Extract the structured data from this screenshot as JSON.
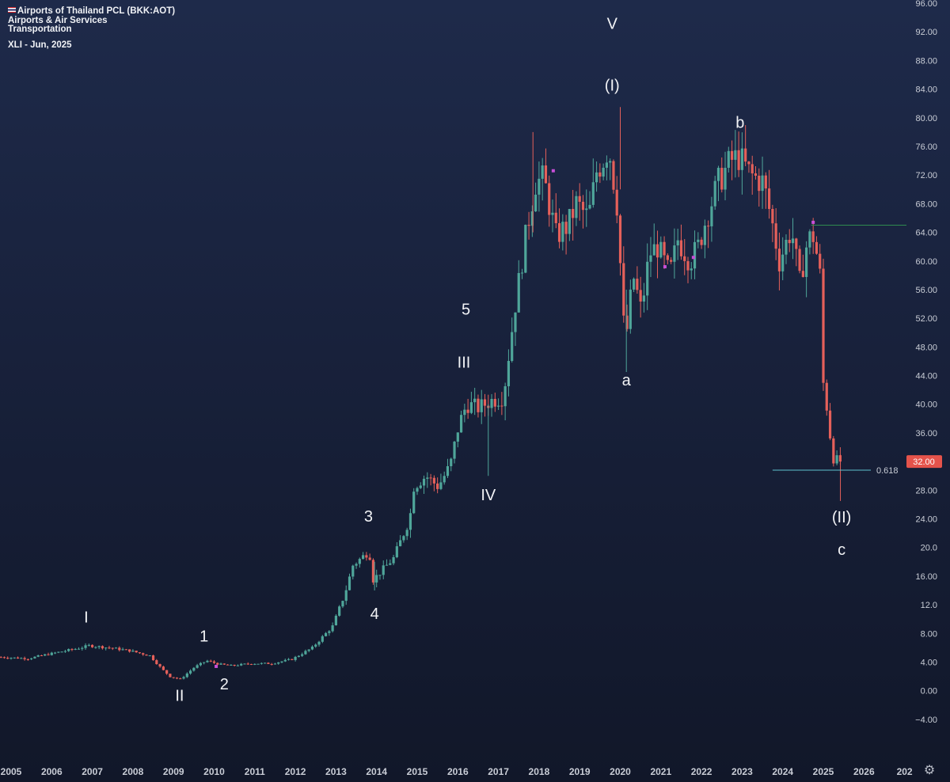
{
  "header": {
    "symbol_line": "Airports of Thailand PCL (BKK:AOT)",
    "industry_line": "Airports & Air Services",
    "sector_line": "Transportation",
    "author_line": "XLI - Jun, 2025",
    "flag_icon": "thailand-flag-icon"
  },
  "colors": {
    "up": "#4fa69a",
    "down": "#e5605a",
    "marker": "#c84fd8",
    "fib_line": "#5fc2cf",
    "target_line": "#2f8a4f",
    "price_badge": "#e5534b"
  },
  "chart_data": {
    "type": "candlestick",
    "title": "",
    "xlabel": "",
    "ylabel": "",
    "ylim": [
      -6,
      96
    ],
    "y_ticks": [
      "96.00",
      "92.00",
      "88.00",
      "84.00",
      "80.00",
      "76.00",
      "72.00",
      "68.00",
      "64.00",
      "60.00",
      "56.00",
      "52.00",
      "48.00",
      "44.00",
      "40.00",
      "36.00",
      "32.00",
      "28.00",
      "24.00",
      "20.0",
      "16.00",
      "12.0",
      "8.00",
      "4.00",
      "0.00",
      "−4.00"
    ],
    "x_ticks": [
      "2005",
      "2006",
      "2007",
      "2008",
      "2009",
      "2010",
      "2011",
      "2012",
      "2013",
      "2014",
      "2015",
      "2016",
      "2017",
      "2018",
      "2019",
      "2020",
      "2021",
      "2022",
      "2023",
      "2024",
      "2025",
      "2026",
      "202"
    ],
    "grid": false,
    "last_price": "32.00",
    "fib_label": "0.618",
    "fib_level": 30.8,
    "target_level": 65.0,
    "anchors": [
      [
        2004.8,
        4.7
      ],
      [
        2005.5,
        4.5
      ],
      [
        2006.0,
        5.1
      ],
      [
        2006.8,
        6.0
      ],
      [
        2007.0,
        6.3
      ],
      [
        2007.5,
        6.0
      ],
      [
        2008.0,
        5.6
      ],
      [
        2008.5,
        4.9
      ],
      [
        2008.8,
        3.0
      ],
      [
        2009.0,
        2.0
      ],
      [
        2009.25,
        1.6
      ],
      [
        2009.6,
        3.3
      ],
      [
        2009.9,
        4.2
      ],
      [
        2010.2,
        3.7
      ],
      [
        2010.5,
        3.5
      ],
      [
        2011.0,
        3.8
      ],
      [
        2011.5,
        3.8
      ],
      [
        2012.0,
        4.4
      ],
      [
        2012.5,
        6.0
      ],
      [
        2013.0,
        9.0
      ],
      [
        2013.3,
        13.5
      ],
      [
        2013.5,
        17.5
      ],
      [
        2013.9,
        19.5
      ],
      [
        2014.0,
        15.5
      ],
      [
        2014.5,
        18.5
      ],
      [
        2014.9,
        24.0
      ],
      [
        2015.0,
        28.5
      ],
      [
        2015.3,
        30.0
      ],
      [
        2015.6,
        28.5
      ],
      [
        2015.9,
        31.5
      ],
      [
        2016.1,
        37.0
      ],
      [
        2016.3,
        40.0
      ],
      [
        2016.6,
        39.5
      ],
      [
        2016.9,
        40.5
      ],
      [
        2017.2,
        41.0
      ],
      [
        2017.5,
        54.0
      ],
      [
        2017.8,
        65.0
      ],
      [
        2018.0,
        71.0
      ],
      [
        2018.2,
        71.5
      ],
      [
        2018.5,
        63.5
      ],
      [
        2018.8,
        65.0
      ],
      [
        2019.0,
        68.0
      ],
      [
        2019.3,
        66.0
      ],
      [
        2019.5,
        72.5
      ],
      [
        2019.7,
        74.5
      ],
      [
        2019.8,
        76.0
      ],
      [
        2020.0,
        68.0
      ],
      [
        2020.2,
        48.0
      ],
      [
        2020.4,
        58.0
      ],
      [
        2020.6,
        53.0
      ],
      [
        2020.8,
        61.0
      ],
      [
        2021.0,
        62.0
      ],
      [
        2021.3,
        58.0
      ],
      [
        2021.5,
        63.0
      ],
      [
        2021.8,
        60.0
      ],
      [
        2022.0,
        62.0
      ],
      [
        2022.2,
        66.0
      ],
      [
        2022.5,
        71.0
      ],
      [
        2022.8,
        74.0
      ],
      [
        2023.0,
        74.5
      ],
      [
        2023.3,
        72.0
      ],
      [
        2023.6,
        71.0
      ],
      [
        2023.8,
        66.0
      ],
      [
        2024.0,
        60.0
      ],
      [
        2024.3,
        64.5
      ],
      [
        2024.5,
        57.0
      ],
      [
        2024.7,
        63.0
      ],
      [
        2024.85,
        63.5
      ],
      [
        2025.0,
        58.0
      ],
      [
        2025.08,
        43.0
      ],
      [
        2025.2,
        38.5
      ],
      [
        2025.3,
        33.0
      ],
      [
        2025.4,
        32.0
      ]
    ]
  },
  "wave_labels": [
    {
      "text": "I",
      "year": 2006.85,
      "price": 9.5
    },
    {
      "text": "II",
      "year": 2009.15,
      "price": -1.4
    },
    {
      "text": "1",
      "year": 2009.75,
      "price": 6.9
    },
    {
      "text": "2",
      "year": 2010.25,
      "price": 0.2
    },
    {
      "text": "3",
      "year": 2013.8,
      "price": 23.6
    },
    {
      "text": "4",
      "year": 2013.95,
      "price": 10.0
    },
    {
      "text": "III",
      "year": 2016.15,
      "price": 45.1
    },
    {
      "text": "5",
      "year": 2016.2,
      "price": 52.5
    },
    {
      "text": "IV",
      "year": 2016.75,
      "price": 26.6
    },
    {
      "text": "V",
      "year": 2019.8,
      "price": 92.4
    },
    {
      "text": "(I)",
      "year": 2019.8,
      "price": 83.8
    },
    {
      "text": "a",
      "year": 2020.15,
      "price": 42.6
    },
    {
      "text": "b",
      "year": 2022.95,
      "price": 78.6
    },
    {
      "text": "(II)",
      "year": 2025.45,
      "price": 23.5
    },
    {
      "text": "c",
      "year": 2025.45,
      "price": 19.0
    }
  ]
}
